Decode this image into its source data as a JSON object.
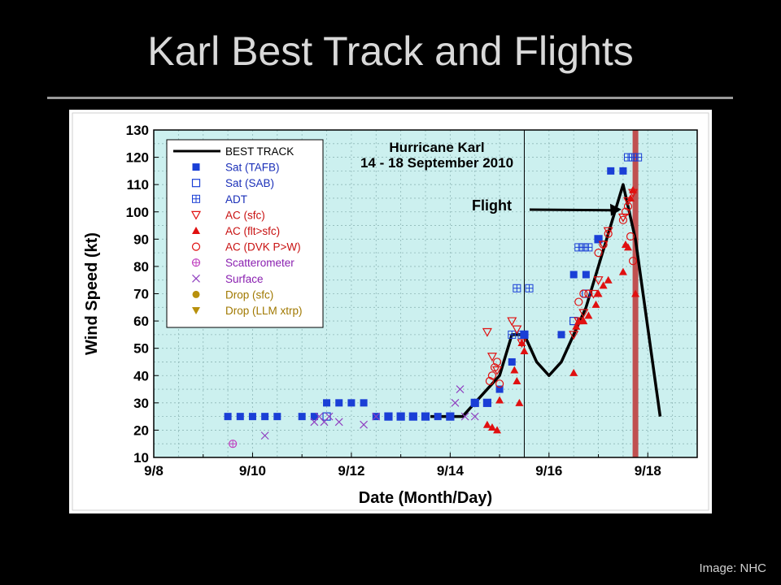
{
  "slide": {
    "title": "Karl Best Track and Flights",
    "credit": "Image: NHC"
  },
  "colors": {
    "background": "#000000",
    "plot_bg": "#ccf0ef",
    "best_track": "#000000",
    "sat_tafb": "#1a3fd6",
    "sat_sab": "#1a3fd6",
    "adt": "#1a3fd6",
    "ac": "#e01010",
    "scatterometer": "#c040c0",
    "surface": "#9040c0",
    "drop": "#b8900c",
    "flight_band": "#c05050",
    "legend_text_blue": "#1a2fb8",
    "legend_text_red": "#c81010",
    "legend_text_purple": "#8a20b0",
    "legend_text_gold": "#a07800"
  },
  "chart_data": {
    "type": "scatter",
    "title": "Hurricane Karl",
    "subtitle": "14 - 18 September 2010",
    "xlabel": "Date (Month/Day)",
    "ylabel": "Wind Speed (kt)",
    "xlim": [
      8.0,
      19.0
    ],
    "ylim": [
      10,
      130
    ],
    "x_ticks": [
      8,
      10,
      12,
      14,
      16,
      18
    ],
    "x_tick_labels": [
      "9/8",
      "9/10",
      "9/12",
      "9/14",
      "9/16",
      "9/18"
    ],
    "y_ticks": [
      10,
      20,
      30,
      40,
      50,
      60,
      70,
      80,
      90,
      100,
      110,
      120,
      130
    ],
    "grid": true,
    "legend_position": "top-left",
    "annotation": {
      "text": "Flight",
      "target_x": 17.5,
      "target_y": 100
    },
    "vertical_lines": [
      15.5
    ],
    "flight_band": 17.75,
    "legend": [
      {
        "label": "BEST TRACK",
        "marker": "line",
        "color": "best_track"
      },
      {
        "label": "Sat (TAFB)",
        "marker": "filled-square",
        "color": "sat_tafb"
      },
      {
        "label": "Sat (SAB)",
        "marker": "open-square",
        "color": "sat_sab"
      },
      {
        "label": "ADT",
        "marker": "plus-square",
        "color": "adt"
      },
      {
        "label": "AC (sfc)",
        "marker": "open-down-triangle",
        "color": "ac"
      },
      {
        "label": "AC (flt>sfc)",
        "marker": "filled-up-triangle",
        "color": "ac"
      },
      {
        "label": "AC (DVK P>W)",
        "marker": "open-circle",
        "color": "ac"
      },
      {
        "label": "Scatterometer",
        "marker": "circle-plus",
        "color": "scatterometer"
      },
      {
        "label": "Surface",
        "marker": "x",
        "color": "surface"
      },
      {
        "label": "Drop (sfc)",
        "marker": "filled-circle",
        "color": "drop"
      },
      {
        "label": "Drop (LLM xtrp)",
        "marker": "filled-down-triangle",
        "color": "drop"
      }
    ],
    "series": [
      {
        "name": "BEST TRACK",
        "style": "line",
        "x": [
          13.6,
          14.25,
          14.75,
          15.0,
          15.25,
          15.5,
          15.75,
          16.0,
          16.25,
          16.5,
          16.75,
          17.0,
          17.25,
          17.5,
          17.75,
          18.25
        ],
        "y": [
          25,
          25,
          35,
          40,
          55,
          55,
          45,
          40,
          45,
          55,
          65,
          80,
          95,
          110,
          90,
          25
        ]
      },
      {
        "name": "Sat (TAFB)",
        "style": "filled-square",
        "x": [
          9.5,
          9.75,
          10.0,
          10.25,
          10.5,
          11.0,
          11.25,
          11.5,
          11.75,
          12.0,
          12.25,
          12.5,
          12.75,
          13.0,
          13.25,
          13.5,
          13.75,
          14.0,
          14.5,
          14.75,
          15.0,
          15.25,
          15.5,
          16.25,
          16.5,
          16.75,
          17.0,
          17.25,
          17.5
        ],
        "y": [
          25,
          25,
          25,
          25,
          25,
          25,
          25,
          30,
          30,
          30,
          30,
          25,
          25,
          25,
          25,
          25,
          25,
          25,
          30,
          30,
          35,
          45,
          55,
          55,
          77,
          77,
          90,
          115,
          115
        ]
      },
      {
        "name": "Sat (SAB)",
        "style": "open-square",
        "x": [
          11.5,
          12.75,
          13.0,
          13.25,
          13.5,
          14.0,
          14.5,
          14.75,
          15.5,
          16.5,
          16.75,
          17.0
        ],
        "y": [
          25,
          25,
          25,
          25,
          25,
          25,
          30,
          30,
          55,
          60,
          70,
          90
        ]
      },
      {
        "name": "ADT",
        "style": "plus-square",
        "x": [
          15.25,
          15.35,
          15.45,
          15.6,
          16.6,
          16.7,
          16.8,
          17.6,
          17.7,
          17.8
        ],
        "y": [
          55,
          72,
          55,
          72,
          87,
          87,
          87,
          120,
          120,
          120
        ]
      },
      {
        "name": "AC (sfc)",
        "style": "open-down-triangle",
        "x": [
          14.75,
          14.85,
          14.95,
          15.25,
          15.35,
          15.45,
          16.5,
          16.6,
          16.7,
          16.9,
          17.0,
          17.1,
          17.2,
          17.5,
          17.6,
          17.7
        ],
        "y": [
          56,
          47,
          42,
          60,
          57,
          52,
          55,
          60,
          63,
          70,
          75,
          88,
          93,
          98,
          104,
          107
        ]
      },
      {
        "name": "AC (flt>sfc)",
        "style": "filled-up-triangle",
        "x": [
          14.75,
          14.85,
          14.95,
          15.0,
          15.3,
          15.35,
          15.4,
          15.45,
          15.5,
          16.5,
          16.55,
          16.6,
          16.7,
          16.8,
          16.95,
          17.0,
          17.1,
          17.2,
          17.5,
          17.55,
          17.6,
          17.65,
          17.7,
          17.75
        ],
        "y": [
          22,
          21,
          20,
          31,
          42,
          38,
          30,
          52,
          49,
          41,
          58,
          60,
          60,
          62,
          66,
          70,
          73,
          75,
          78,
          88,
          87,
          105,
          108,
          70
        ]
      },
      {
        "name": "AC (DVK P>W)",
        "style": "open-circle",
        "x": [
          14.8,
          14.85,
          14.9,
          14.95,
          15.0,
          16.6,
          16.7,
          16.8,
          17.0,
          17.1,
          17.2,
          17.5,
          17.55,
          17.6,
          17.65,
          17.7
        ],
        "y": [
          38,
          40,
          43,
          45,
          37,
          67,
          70,
          70,
          85,
          88,
          92,
          97,
          100,
          102,
          91,
          82
        ]
      },
      {
        "name": "Scatterometer",
        "style": "circle-plus",
        "x": [
          9.6
        ],
        "y": [
          15
        ]
      },
      {
        "name": "Surface",
        "style": "x",
        "x": [
          10.25,
          11.25,
          11.35,
          11.45,
          11.55,
          11.75,
          12.25,
          12.5,
          14.1,
          14.2,
          14.3,
          14.5
        ],
        "y": [
          18,
          23,
          25,
          23,
          25,
          23,
          22,
          25,
          30,
          35,
          25,
          25
        ]
      }
    ]
  }
}
